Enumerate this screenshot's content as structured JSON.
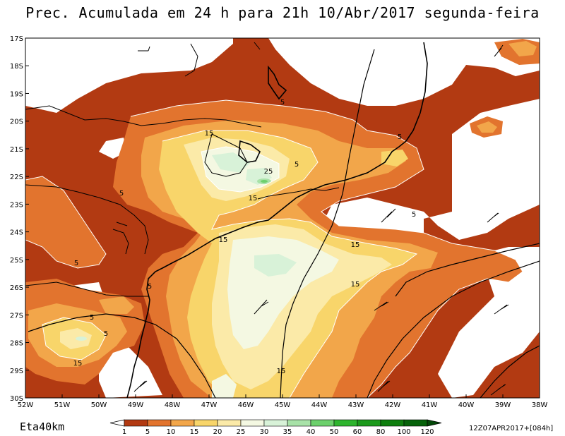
{
  "title": "Prec. Acumulada em 24 h para 21h 10/Abr/2017 segunda-feira",
  "model_label": "Eta40km",
  "run_stamp": "12Z07APR2017+[084h]",
  "colors": {
    "c1": "#b23a12",
    "c5": "#e2742e",
    "c10": "#f2a64a",
    "c15": "#f8d56a",
    "c20": "#fbeaa8",
    "c25": "#f4f8e2",
    "c30": "#d8f2d8",
    "c35": "#a8e2a8",
    "c40": "#6cd06c",
    "c50": "#2eb42e",
    "c60": "#1c9a1c",
    "c80": "#0e7e0e",
    "c100": "#06620a",
    "c120": "#034808"
  },
  "map": {
    "lat_labels": [
      "17S",
      "18S",
      "19S",
      "20S",
      "21S",
      "22S",
      "23S",
      "24S",
      "25S",
      "26S",
      "27S",
      "28S",
      "29S",
      "30S"
    ],
    "lon_labels": [
      "52W",
      "51W",
      "50W",
      "49W",
      "48W",
      "47W",
      "46W",
      "45W",
      "44W",
      "43W",
      "42W",
      "41W",
      "40W",
      "39W",
      "38W"
    ],
    "contour_labels": [
      {
        "text": "5"
      },
      {
        "text": "5"
      },
      {
        "text": "5"
      },
      {
        "text": "5"
      },
      {
        "text": "5"
      },
      {
        "text": "5"
      },
      {
        "text": "5"
      },
      {
        "text": "5"
      },
      {
        "text": "5"
      },
      {
        "text": "15"
      },
      {
        "text": "15"
      },
      {
        "text": "15"
      },
      {
        "text": "15"
      },
      {
        "text": "15"
      },
      {
        "text": "15"
      },
      {
        "text": "15"
      },
      {
        "text": "25"
      }
    ]
  },
  "legend": {
    "ticks": [
      "1",
      "5",
      "10",
      "15",
      "20",
      "25",
      "30",
      "35",
      "40",
      "50",
      "60",
      "80",
      "100",
      "120"
    ]
  }
}
